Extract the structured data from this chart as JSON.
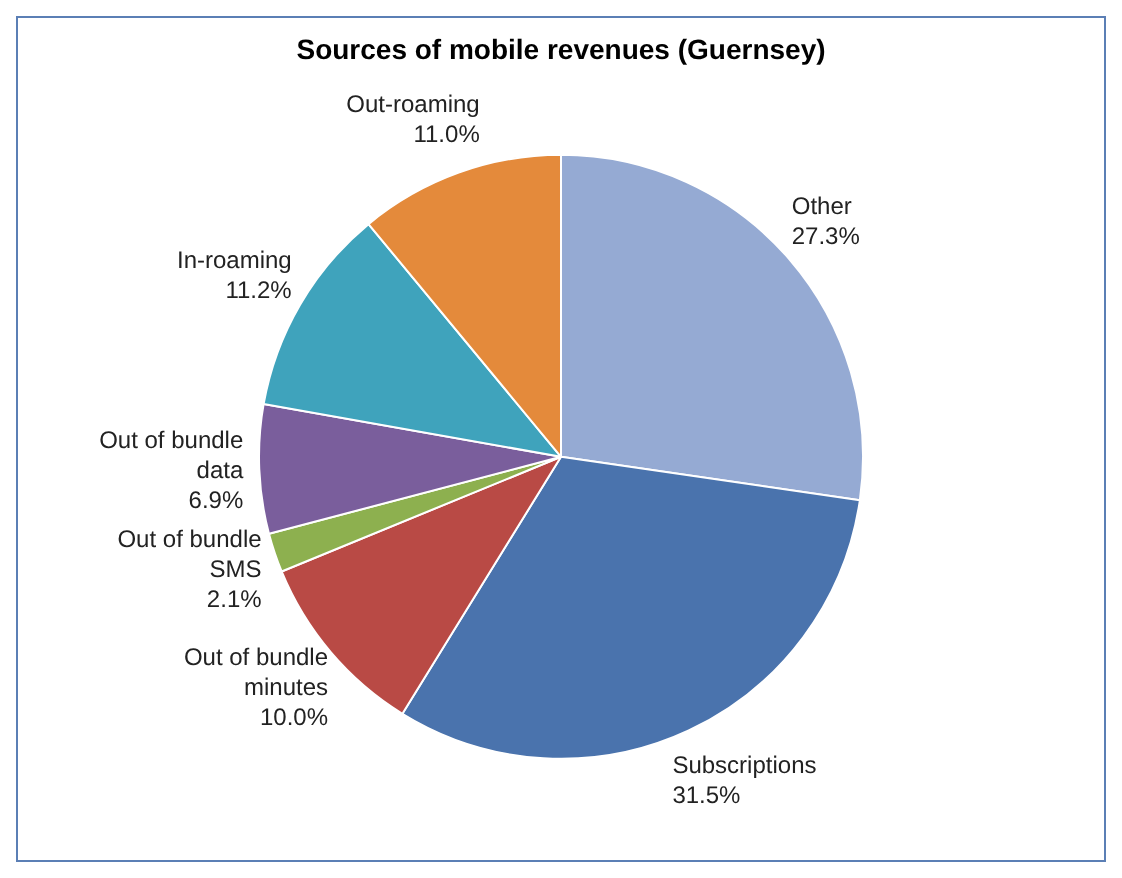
{
  "chart_data": {
    "type": "pie",
    "title": "Sources of mobile revenues (Guernsey)",
    "categories": [
      "Other",
      "Subscriptions",
      "Out of bundle minutes",
      "Out of bundle SMS",
      "Out of bundle data",
      "In-roaming",
      "Out-roaming"
    ],
    "values": [
      27.3,
      31.5,
      10.0,
      2.1,
      6.9,
      11.2,
      11.0
    ],
    "value_labels": [
      "27.3%",
      "31.5%",
      "10.0%",
      "2.1%",
      "6.9%",
      "11.2%",
      "11.0%"
    ],
    "colors": [
      "#95aad3",
      "#4a73ad",
      "#b94a45",
      "#8db04f",
      "#7a5e9c",
      "#3fa3bc",
      "#e48a3b"
    ],
    "legend": false
  }
}
